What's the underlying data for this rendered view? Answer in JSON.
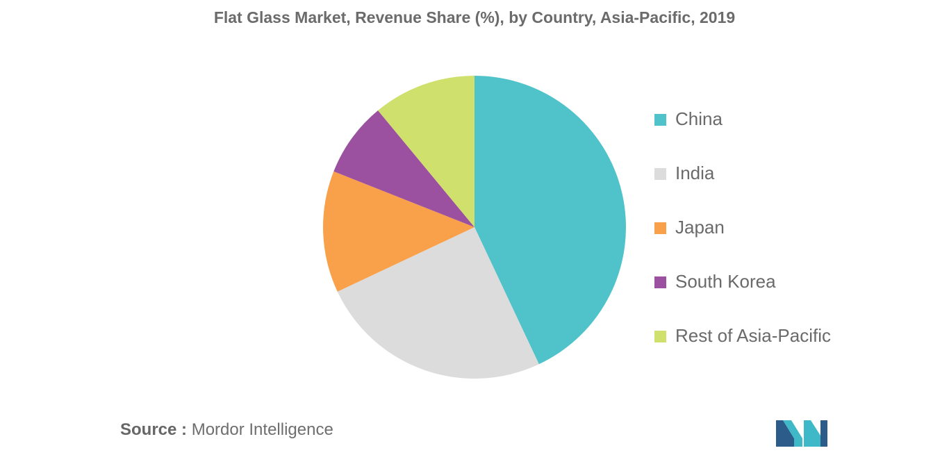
{
  "chart_data": {
    "type": "pie",
    "title": "Flat Glass Market, Revenue Share (%), by Country, Asia-Pacific, 2019",
    "categories": [
      "China",
      "India",
      "Japan",
      "South Korea",
      "Rest of Asia-Pacific"
    ],
    "values": [
      43,
      25,
      13,
      8,
      11
    ],
    "colors": [
      "#4fc3c9",
      "#dcdcdc",
      "#f9a04a",
      "#9b51a0",
      "#d0e06c"
    ],
    "start_angle_deg": 0,
    "direction": "clockwise",
    "legend_position": "right"
  },
  "source": {
    "label": "Source :",
    "text": "Mordor Intelligence"
  },
  "logo": {
    "icon": "mordor-intelligence-logo-icon",
    "colors": [
      "#2b5c8a",
      "#3fb8c8"
    ]
  }
}
